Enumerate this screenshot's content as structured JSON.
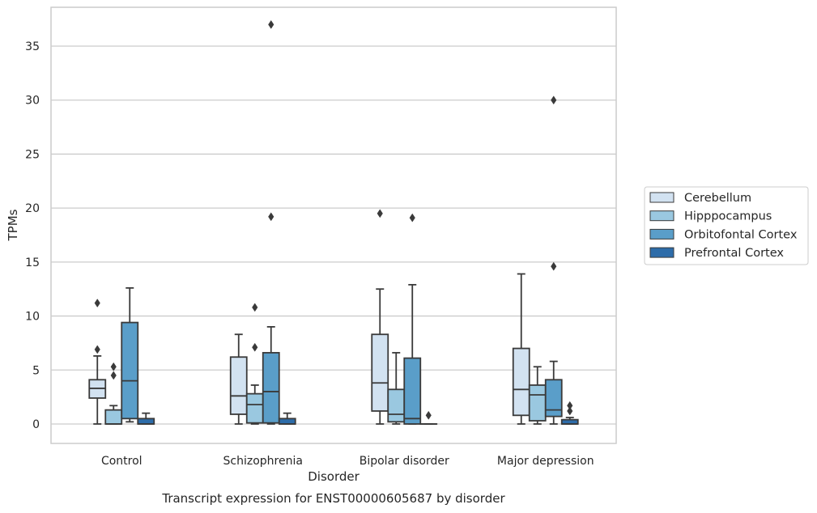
{
  "chart_data": {
    "type": "box",
    "title": "Transcript expression for ENST00000605687 by disorder",
    "xlabel": "Disorder",
    "ylabel": "TPMs",
    "ylim": [
      -1.8,
      38.6
    ],
    "yticks": [
      0,
      5,
      10,
      15,
      20,
      25,
      30,
      35
    ],
    "grid": true,
    "legend_position": "right",
    "categories": [
      "Control",
      "Schizophrenia",
      "Bipolar disorder",
      "Major depression"
    ],
    "series": [
      {
        "name": "Cerebellum",
        "color": "#d2e2f1",
        "boxes": [
          {
            "whislo": 0.0,
            "q1": 2.4,
            "med": 3.3,
            "q3": 4.1,
            "whishi": 6.3,
            "fliers": [
              6.9,
              11.2
            ]
          },
          {
            "whislo": 0.0,
            "q1": 0.9,
            "med": 2.6,
            "q3": 6.2,
            "whishi": 8.3,
            "fliers": []
          },
          {
            "whislo": 0.0,
            "q1": 1.2,
            "med": 3.8,
            "q3": 8.3,
            "whishi": 12.5,
            "fliers": [
              19.5
            ]
          },
          {
            "whislo": 0.0,
            "q1": 0.8,
            "med": 3.2,
            "q3": 7.0,
            "whishi": 13.9,
            "fliers": []
          }
        ]
      },
      {
        "name": "Hipppocampus",
        "color": "#9ac8e0",
        "boxes": [
          {
            "whislo": 0.0,
            "q1": 0.0,
            "med": 0.0,
            "q3": 1.3,
            "whishi": 1.7,
            "fliers": [
              4.5,
              5.3
            ]
          },
          {
            "whislo": 0.0,
            "q1": 0.1,
            "med": 1.8,
            "q3": 2.8,
            "whishi": 3.6,
            "fliers": [
              7.1,
              10.8
            ]
          },
          {
            "whislo": 0.0,
            "q1": 0.2,
            "med": 0.9,
            "q3": 3.2,
            "whishi": 6.6,
            "fliers": []
          },
          {
            "whislo": 0.0,
            "q1": 0.3,
            "med": 2.7,
            "q3": 3.6,
            "whishi": 5.3,
            "fliers": []
          }
        ]
      },
      {
        "name": "Orbitofontal Cortex",
        "color": "#5a9ec9",
        "boxes": [
          {
            "whislo": 0.2,
            "q1": 0.5,
            "med": 4.0,
            "q3": 9.4,
            "whishi": 12.6,
            "fliers": []
          },
          {
            "whislo": 0.0,
            "q1": 0.1,
            "med": 3.0,
            "q3": 6.6,
            "whishi": 9.0,
            "fliers": [
              19.2,
              37.0
            ]
          },
          {
            "whislo": 0.0,
            "q1": 0.0,
            "med": 0.5,
            "q3": 6.1,
            "whishi": 12.9,
            "fliers": [
              19.1
            ]
          },
          {
            "whislo": 0.0,
            "q1": 0.7,
            "med": 1.3,
            "q3": 4.1,
            "whishi": 5.8,
            "fliers": [
              14.6,
              30.0
            ]
          }
        ]
      },
      {
        "name": "Prefrontal Cortex",
        "color": "#2d6ca9",
        "boxes": [
          {
            "whislo": 0.0,
            "q1": 0.0,
            "med": 0.0,
            "q3": 0.5,
            "whishi": 1.0,
            "fliers": []
          },
          {
            "whislo": 0.0,
            "q1": 0.0,
            "med": 0.0,
            "q3": 0.5,
            "whishi": 1.0,
            "fliers": []
          },
          {
            "whislo": 0.0,
            "q1": 0.0,
            "med": 0.0,
            "q3": 0.0,
            "whishi": 0.0,
            "fliers": [
              0.8
            ]
          },
          {
            "whislo": 0.0,
            "q1": 0.0,
            "med": 0.0,
            "q3": 0.4,
            "whishi": 0.6,
            "fliers": [
              1.2,
              1.7
            ]
          }
        ]
      }
    ]
  }
}
